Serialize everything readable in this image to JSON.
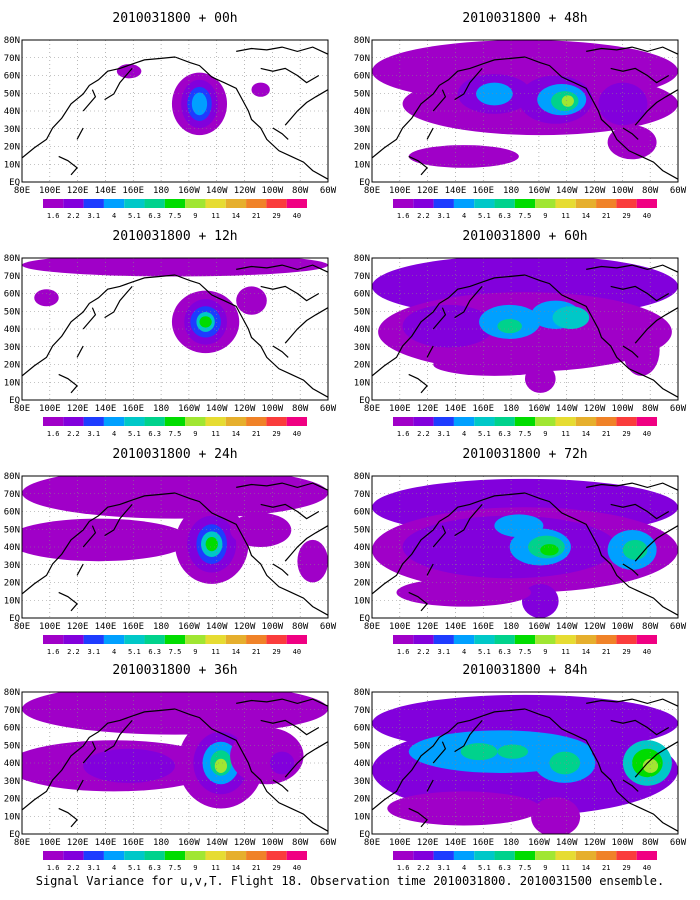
{
  "figure": {
    "caption": "Signal Variance for u,v,T. Flight 18. Observation time 2010031800. 2010031500 ensemble."
  },
  "panels": [
    {
      "title": "2010031800 + 00h",
      "lead": "00h",
      "blobs": [
        [
          0.58,
          0.45,
          0.09,
          0.22,
          0
        ],
        [
          0.58,
          0.45,
          0.06,
          0.17,
          1
        ],
        [
          0.58,
          0.45,
          0.04,
          0.12,
          2
        ],
        [
          0.58,
          0.45,
          0.025,
          0.08,
          3
        ],
        [
          0.35,
          0.22,
          0.04,
          0.05,
          0
        ],
        [
          0.78,
          0.35,
          0.03,
          0.05,
          0
        ]
      ]
    },
    {
      "title": "2010031800 + 12h",
      "lead": "12h",
      "blobs": [
        [
          0.5,
          0.05,
          0.5,
          0.08,
          0
        ],
        [
          0.6,
          0.45,
          0.11,
          0.22,
          0
        ],
        [
          0.6,
          0.45,
          0.07,
          0.16,
          1
        ],
        [
          0.6,
          0.45,
          0.05,
          0.11,
          2
        ],
        [
          0.6,
          0.45,
          0.03,
          0.07,
          4
        ],
        [
          0.6,
          0.45,
          0.02,
          0.04,
          6
        ],
        [
          0.75,
          0.3,
          0.05,
          0.1,
          0
        ],
        [
          0.08,
          0.28,
          0.04,
          0.06,
          0
        ]
      ]
    },
    {
      "title": "2010031800 + 24h",
      "lead": "24h",
      "blobs": [
        [
          0.5,
          0.12,
          0.5,
          0.18,
          0
        ],
        [
          0.25,
          0.45,
          0.3,
          0.15,
          0
        ],
        [
          0.62,
          0.48,
          0.12,
          0.28,
          0
        ],
        [
          0.62,
          0.48,
          0.08,
          0.2,
          1
        ],
        [
          0.62,
          0.48,
          0.05,
          0.14,
          2
        ],
        [
          0.62,
          0.48,
          0.035,
          0.09,
          4
        ],
        [
          0.62,
          0.48,
          0.02,
          0.05,
          6
        ],
        [
          0.78,
          0.38,
          0.1,
          0.12,
          0
        ],
        [
          0.95,
          0.6,
          0.05,
          0.15,
          0
        ]
      ]
    },
    {
      "title": "2010031800 + 36h",
      "lead": "36h",
      "blobs": [
        [
          0.5,
          0.12,
          0.5,
          0.18,
          0
        ],
        [
          0.3,
          0.52,
          0.35,
          0.18,
          0
        ],
        [
          0.35,
          0.52,
          0.15,
          0.12,
          1
        ],
        [
          0.65,
          0.5,
          0.14,
          0.32,
          0
        ],
        [
          0.65,
          0.5,
          0.09,
          0.22,
          1
        ],
        [
          0.65,
          0.5,
          0.06,
          0.15,
          3
        ],
        [
          0.65,
          0.5,
          0.035,
          0.09,
          5
        ],
        [
          0.65,
          0.52,
          0.02,
          0.05,
          7
        ],
        [
          0.8,
          0.45,
          0.12,
          0.2,
          0
        ],
        [
          0.85,
          0.5,
          0.04,
          0.08,
          1
        ]
      ]
    },
    {
      "title": "2010031800 + 48h",
      "lead": "48h",
      "blobs": [
        [
          0.5,
          0.22,
          0.5,
          0.22,
          0
        ],
        [
          0.55,
          0.45,
          0.45,
          0.22,
          0
        ],
        [
          0.4,
          0.38,
          0.12,
          0.14,
          1
        ],
        [
          0.4,
          0.38,
          0.06,
          0.08,
          3
        ],
        [
          0.6,
          0.42,
          0.12,
          0.17,
          1
        ],
        [
          0.62,
          0.42,
          0.08,
          0.11,
          3
        ],
        [
          0.63,
          0.43,
          0.045,
          0.07,
          5
        ],
        [
          0.64,
          0.43,
          0.02,
          0.04,
          7
        ],
        [
          0.82,
          0.45,
          0.08,
          0.15,
          1
        ],
        [
          0.3,
          0.82,
          0.18,
          0.08,
          0
        ],
        [
          0.85,
          0.72,
          0.08,
          0.12,
          0
        ]
      ]
    },
    {
      "title": "2010031800 + 60h",
      "lead": "60h",
      "blobs": [
        [
          0.5,
          0.2,
          0.5,
          0.22,
          1
        ],
        [
          0.5,
          0.52,
          0.48,
          0.28,
          0
        ],
        [
          0.25,
          0.48,
          0.15,
          0.15,
          1
        ],
        [
          0.45,
          0.45,
          0.1,
          0.12,
          3
        ],
        [
          0.6,
          0.4,
          0.08,
          0.1,
          3
        ],
        [
          0.65,
          0.42,
          0.06,
          0.08,
          4
        ],
        [
          0.45,
          0.48,
          0.04,
          0.05,
          5
        ],
        [
          0.55,
          0.85,
          0.05,
          0.1,
          0
        ],
        [
          0.88,
          0.65,
          0.06,
          0.18,
          0
        ],
        [
          0.4,
          0.75,
          0.2,
          0.08,
          0
        ]
      ]
    },
    {
      "title": "2010031800 + 72h",
      "lead": "72h",
      "blobs": [
        [
          0.5,
          0.22,
          0.5,
          0.2,
          1
        ],
        [
          0.5,
          0.52,
          0.5,
          0.3,
          0
        ],
        [
          0.45,
          0.5,
          0.35,
          0.22,
          1
        ],
        [
          0.48,
          0.35,
          0.08,
          0.08,
          3
        ],
        [
          0.55,
          0.5,
          0.1,
          0.13,
          3
        ],
        [
          0.57,
          0.5,
          0.06,
          0.08,
          5
        ],
        [
          0.58,
          0.52,
          0.03,
          0.04,
          6
        ],
        [
          0.85,
          0.52,
          0.08,
          0.14,
          3
        ],
        [
          0.86,
          0.52,
          0.04,
          0.07,
          5
        ],
        [
          0.55,
          0.88,
          0.06,
          0.12,
          1
        ],
        [
          0.3,
          0.82,
          0.22,
          0.1,
          0
        ]
      ]
    },
    {
      "title": "2010031800 + 84h",
      "lead": "84h",
      "blobs": [
        [
          0.5,
          0.22,
          0.5,
          0.2,
          1
        ],
        [
          0.5,
          0.55,
          0.5,
          0.32,
          1
        ],
        [
          0.42,
          0.42,
          0.3,
          0.15,
          3
        ],
        [
          0.35,
          0.42,
          0.06,
          0.06,
          5
        ],
        [
          0.46,
          0.42,
          0.05,
          0.05,
          5
        ],
        [
          0.63,
          0.5,
          0.1,
          0.14,
          3
        ],
        [
          0.63,
          0.5,
          0.05,
          0.08,
          5
        ],
        [
          0.9,
          0.5,
          0.08,
          0.16,
          4
        ],
        [
          0.9,
          0.5,
          0.05,
          0.1,
          6
        ],
        [
          0.91,
          0.52,
          0.025,
          0.05,
          7
        ],
        [
          0.3,
          0.82,
          0.25,
          0.12,
          0
        ],
        [
          0.6,
          0.88,
          0.08,
          0.14,
          0
        ]
      ]
    }
  ],
  "axes": {
    "lon_labels": [
      "80E",
      "100E",
      "120E",
      "140E",
      "160E",
      "180",
      "160W",
      "140W",
      "120W",
      "100W",
      "80W",
      "60W"
    ],
    "lat_labels": [
      "80N",
      "70N",
      "60N",
      "50N",
      "40N",
      "30N",
      "20N",
      "10N",
      "EQ"
    ]
  },
  "colorbar": {
    "levels": [
      "1.6",
      "2.2",
      "3.1",
      "4",
      "5.1",
      "6.3",
      "7.5",
      "9",
      "11",
      "14",
      "21",
      "29",
      "40"
    ],
    "colors": [
      "#a000c8",
      "#8200dc",
      "#1e3cff",
      "#00a0ff",
      "#00c8c8",
      "#00d28c",
      "#00dc00",
      "#a0e632",
      "#e6dc32",
      "#e6af2d",
      "#f08228",
      "#fa3c3c",
      "#f00082"
    ]
  }
}
